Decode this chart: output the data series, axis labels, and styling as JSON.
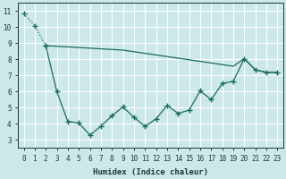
{
  "xlabel": "Humidex (Indice chaleur)",
  "background_color": "#cce8e8",
  "grid_color": "#ffffff",
  "line_color": "#1a6b60",
  "xlim": [
    -0.5,
    23.5
  ],
  "ylim": [
    2.5,
    11.5
  ],
  "yticks": [
    3,
    4,
    5,
    6,
    7,
    8,
    9,
    10,
    11
  ],
  "xticks": [
    0,
    1,
    2,
    3,
    4,
    5,
    6,
    7,
    8,
    9,
    10,
    11,
    12,
    13,
    14,
    15,
    16,
    17,
    18,
    19,
    20,
    21,
    22,
    23
  ],
  "line1_x": [
    0,
    1,
    2
  ],
  "line1_y": [
    10.85,
    10.1,
    8.85
  ],
  "line2_x": [
    2,
    3,
    4,
    5,
    6,
    7,
    8,
    9,
    10,
    11,
    12,
    13,
    14,
    15,
    16,
    17,
    18,
    19,
    20,
    21,
    22,
    23
  ],
  "line2_y": [
    8.85,
    8.82,
    8.78,
    8.74,
    8.7,
    8.66,
    8.62,
    8.58,
    8.48,
    8.38,
    8.28,
    8.18,
    8.08,
    7.98,
    7.88,
    7.78,
    7.68,
    7.58,
    8.05,
    7.35,
    7.2,
    7.2
  ],
  "line3_x": [
    2,
    3,
    4,
    5,
    6,
    7,
    8,
    9,
    10,
    11,
    12,
    13,
    14,
    15,
    16,
    17,
    18,
    19,
    20,
    21,
    22,
    23
  ],
  "line3_y": [
    8.85,
    6.0,
    4.15,
    4.05,
    3.3,
    3.85,
    4.5,
    5.05,
    4.4,
    3.85,
    4.3,
    5.15,
    4.65,
    4.85,
    6.05,
    5.5,
    6.5,
    6.65,
    8.05,
    7.35,
    7.2,
    7.2
  ]
}
